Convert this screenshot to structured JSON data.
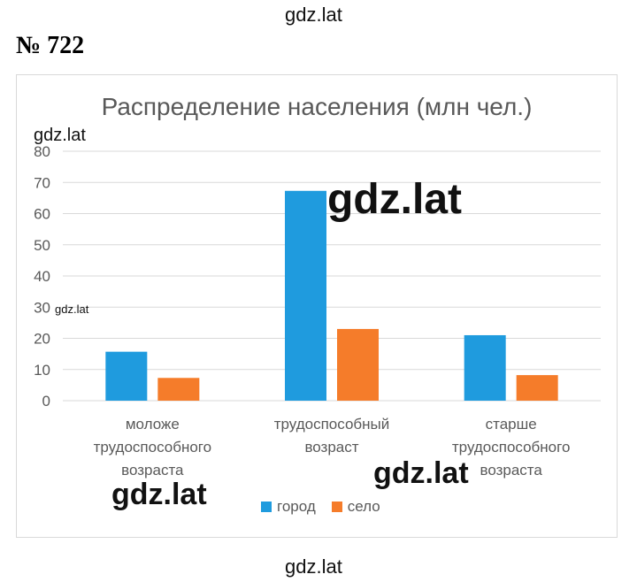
{
  "watermarks": {
    "top": "gdz.lat",
    "bottom": "gdz.lat",
    "left_small": "gdz.lat",
    "tiny": "gdz.lat",
    "big": "gdz.lat",
    "mid_left": "gdz.lat",
    "mid_right": "gdz.lat"
  },
  "problem_number": "№ 722",
  "colors": {
    "город": "#1f9bde",
    "село": "#f57c2a",
    "grid": "#d9d9d9",
    "text": "#595959"
  },
  "chart_data": {
    "type": "bar",
    "title": "Распределение населения (млн чел.)",
    "categories": [
      [
        "моложе",
        "трудоспособного",
        "возраста"
      ],
      [
        "трудоспособный",
        "возраст"
      ],
      [
        "старше",
        "трудоспособного",
        "возраста"
      ]
    ],
    "series": [
      {
        "name": "город",
        "values": [
          15.7,
          67.3,
          21.0
        ]
      },
      {
        "name": "село",
        "values": [
          7.3,
          23.0,
          8.2
        ]
      }
    ],
    "yticks": [
      0,
      10,
      20,
      30,
      40,
      50,
      60,
      70,
      80
    ],
    "ylim": [
      0,
      80
    ],
    "grid": true,
    "legend_position": "bottom"
  }
}
